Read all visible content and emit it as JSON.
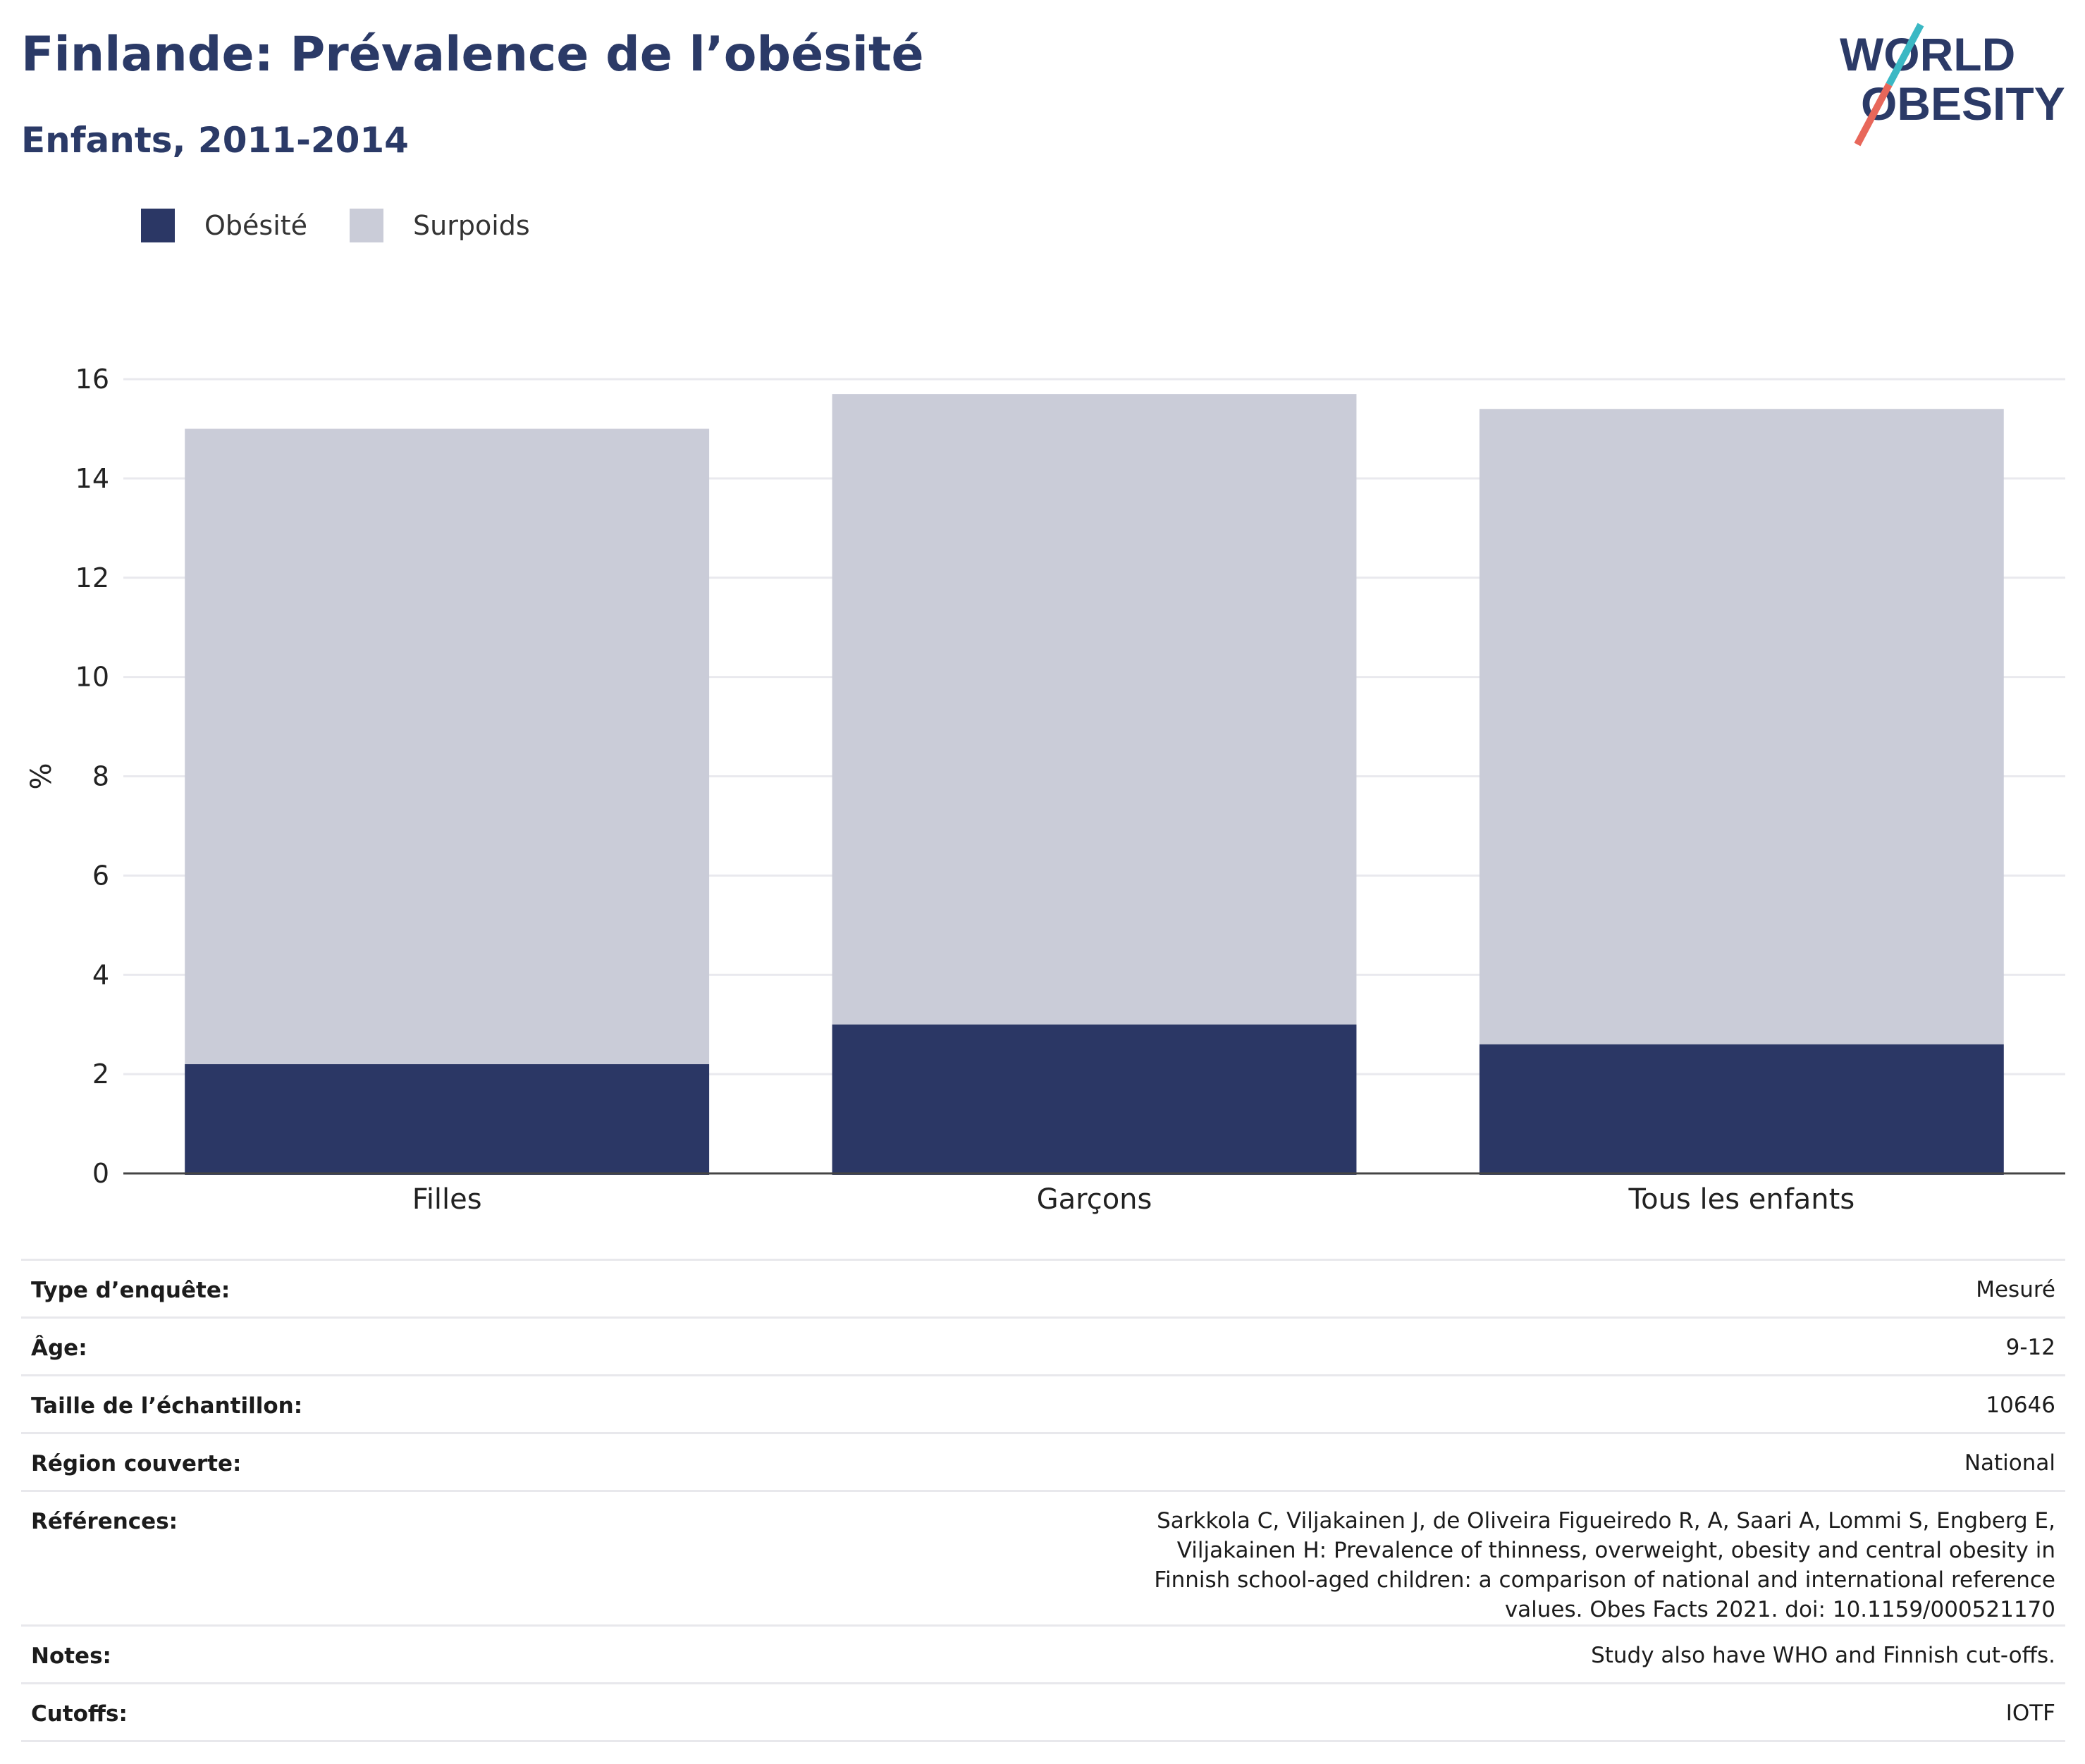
{
  "header": {
    "title": "Finlande: Prévalence de l’obésité",
    "subtitle": "Enfants, 2011-2014"
  },
  "logo": {
    "line1": "WORLD",
    "line2": "OBESITY",
    "colors": {
      "text": "#2b3a67",
      "slash_top": "#3bb8c4",
      "slash_bottom": "#e8675a"
    }
  },
  "colors": {
    "title": "#2b3a67",
    "obesity": "#2b3765",
    "overweight": "#caccd8",
    "grid": "#e9e9ee",
    "axis": "#444444"
  },
  "chart_data": {
    "type": "bar",
    "stacking": "overlay",
    "categories": [
      "Filles",
      "Garçons",
      "Tous les enfants"
    ],
    "series": [
      {
        "name": "Obésité",
        "values": [
          2.2,
          3.0,
          2.6
        ],
        "color": "#2b3765"
      },
      {
        "name": "Surpoids",
        "values": [
          15.0,
          15.7,
          15.4
        ],
        "color": "#caccd8"
      }
    ],
    "ylabel": "%",
    "ylim": [
      0,
      16
    ],
    "yticks": [
      0,
      2,
      4,
      6,
      8,
      10,
      12,
      14,
      16
    ],
    "grid": true,
    "legend_position": "top-left"
  },
  "info": [
    {
      "label": "Type d’enquête:",
      "value": "Mesuré"
    },
    {
      "label": "Âge:",
      "value": "9-12"
    },
    {
      "label": "Taille de l’échantillon:",
      "value": "10646"
    },
    {
      "label": "Région couverte:",
      "value": "National"
    },
    {
      "label": "Références:",
      "value": "Sarkkola C, Viljakainen J, de Oliveira Figueiredo R, A, Saari A, Lommi S, Engberg E, Viljakainen H: Prevalence of thinness, overweight, obesity and central obesity in Finnish school-aged children: a comparison of national and international reference values. Obes Facts 2021. doi: 10.1159/000521170"
    },
    {
      "label": "Notes:",
      "value": "Study also have WHO and Finnish cut-offs."
    },
    {
      "label": "Cutoffs:",
      "value": "IOTF"
    }
  ]
}
